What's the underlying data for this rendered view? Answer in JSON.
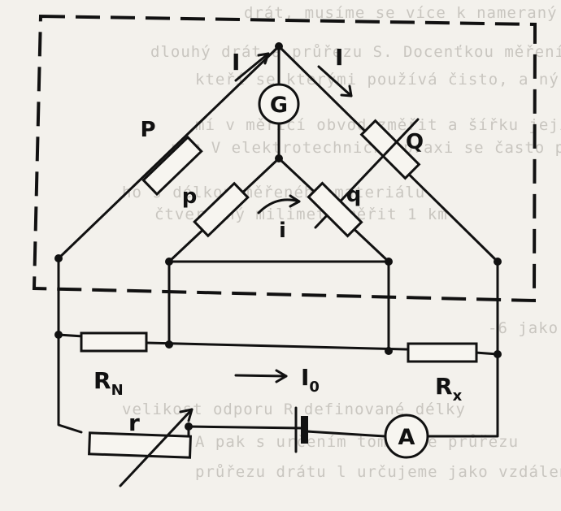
{
  "background_text": [
    "drát, musíme se více k nameraný. T",
    "dlouhý drát a průřezu S. Docenťkou měření",
    "kteří se kterými používá čisto, a ný je měřeným materiálu",
    "mí v měřící obvod změřit a šířku jejich",
    "nám V elektrotechnické praxi se často po",
    "ho s délkou měřeného materiálu",
    "čtverečný milimetr měřit 1 km",
    "-6 jako",
    "velikost odporu R definované délky",
    "A pak s určením tomu, že průřezu",
    "průřezu drátu l určujeme jako vzdálenost"
  ],
  "labels": {
    "current_left": "I",
    "current_right": "I",
    "galvanometer": "G",
    "resistor_P": "P",
    "resistor_Q": "Q",
    "resistor_p": "p",
    "resistor_q": "q",
    "inner_current": "i",
    "resistor_RN_main": "R",
    "resistor_RN_sub": "N",
    "resistor_RX_main": "R",
    "resistor_RX_sub": "x",
    "main_current_main": "I",
    "main_current_sub": "0",
    "rheostat": "r",
    "ammeter": "A"
  },
  "colors": {
    "ink": "#111111",
    "paper": "#f3f1ec",
    "ghost_text": "#c9c6c0"
  }
}
